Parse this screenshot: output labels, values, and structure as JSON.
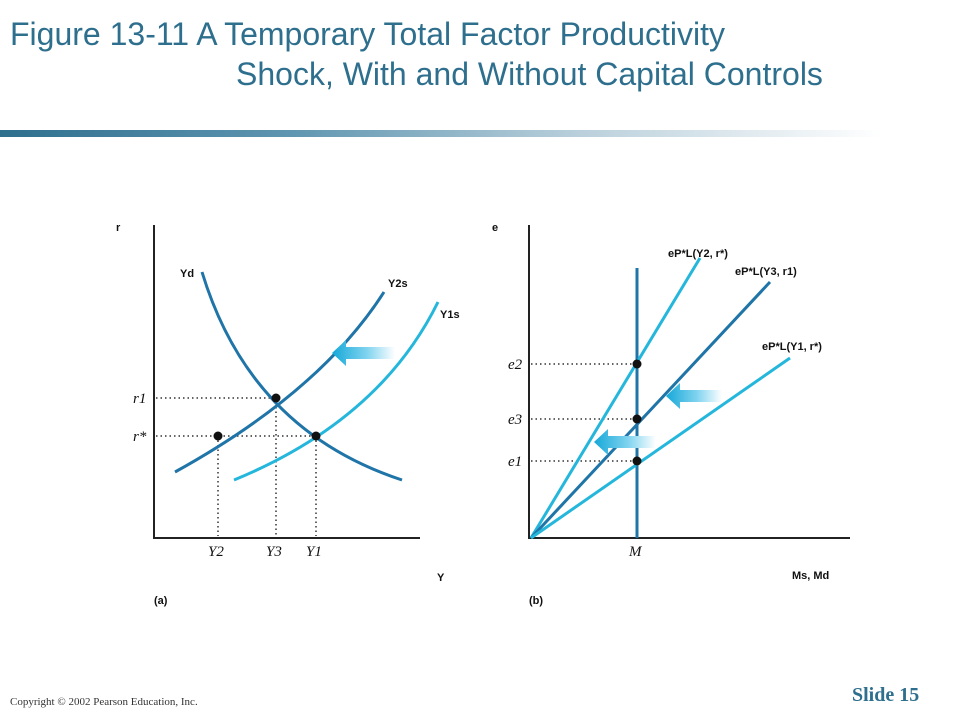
{
  "title": {
    "line1": "Figure 13-11  A Temporary Total Factor Productivity",
    "line2": "Shock, With and Without Capital Controls"
  },
  "footer": {
    "copyright": "Copyright © 2002 Pearson Education, Inc.",
    "slide": "Slide 15"
  },
  "colors": {
    "title": "#2e6f8e",
    "dark_curve": "#1f74a8",
    "light_curve": "#25b6dc",
    "axis": "#222222"
  },
  "panel_a": {
    "label": "(a)",
    "y_axis": "r",
    "x_axis": "Y",
    "curves": {
      "demand": "Yd",
      "supply2": "Y2s",
      "supply1": "Y1s"
    },
    "y_ticks": [
      "r1",
      "r*"
    ],
    "x_ticks": [
      "Y2",
      "Y3",
      "Y1"
    ]
  },
  "panel_b": {
    "label": "(b)",
    "y_axis": "e",
    "x_axis": "Ms, Md",
    "lines": {
      "top": "eP*L(Y2, r*)",
      "mid": "eP*L(Y3, r1)",
      "low": "eP*L(Y1, r*)"
    },
    "y_ticks": [
      "e2",
      "e3",
      "e1"
    ],
    "x_tick": "M"
  }
}
